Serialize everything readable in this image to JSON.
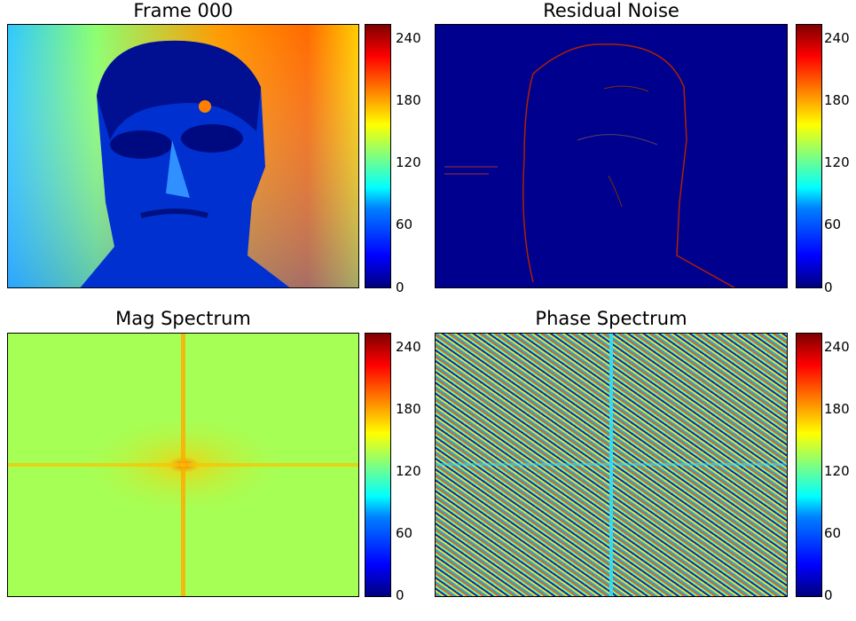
{
  "figure": {
    "panels": [
      {
        "id": "frame",
        "title": "Frame 000"
      },
      {
        "id": "noise",
        "title": "Residual Noise"
      },
      {
        "id": "mag",
        "title": "Mag Spectrum"
      },
      {
        "id": "phase",
        "title": "Phase Spectrum"
      }
    ]
  },
  "chart_data": [
    {
      "type": "heatmap",
      "title": "Frame 000",
      "colormap": "jet",
      "colorbar": {
        "ticks": [
          0,
          60,
          120,
          180,
          240
        ],
        "range": [
          0,
          255
        ]
      }
    },
    {
      "type": "heatmap",
      "title": "Residual Noise",
      "colormap": "jet",
      "colorbar": {
        "ticks": [
          0,
          60,
          120,
          180,
          240
        ],
        "range": [
          0,
          255
        ]
      }
    },
    {
      "type": "heatmap",
      "title": "Mag Spectrum",
      "colormap": "jet",
      "colorbar": {
        "ticks": [
          0,
          60,
          120,
          180,
          240
        ],
        "range": [
          0,
          255
        ]
      }
    },
    {
      "type": "heatmap",
      "title": "Phase Spectrum",
      "colormap": "jet",
      "colorbar": {
        "ticks": [
          0,
          60,
          120,
          180,
          240
        ],
        "range": [
          0,
          255
        ]
      }
    }
  ],
  "colors": {
    "jet_low": "#00007f",
    "jet_mid": "#7fff7f",
    "jet_high": "#7f0000"
  }
}
